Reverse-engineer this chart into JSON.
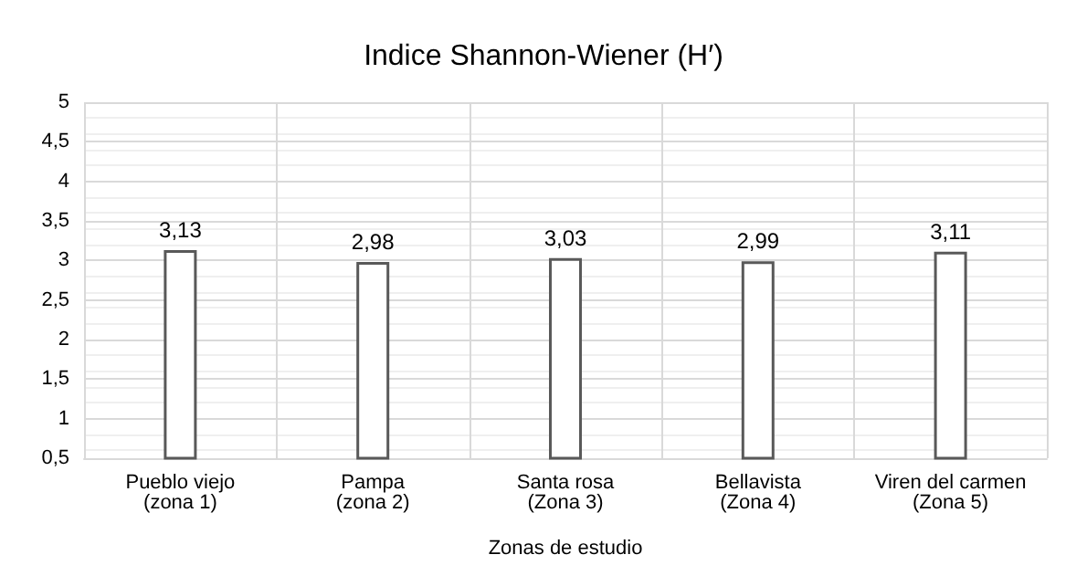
{
  "chart_data": {
    "type": "bar",
    "title": "Indice Shannon-Wiener (H′)",
    "xlabel": "Zonas de estudio",
    "categories": [
      "Pueblo viejo\n(zona 1)",
      "Pampa\n(zona 2)",
      "Santa rosa\n(Zona 3)",
      "Bellavista\n(Zona 4)",
      "Viren del carmen\n(Zona 5)"
    ],
    "values": [
      3.13,
      2.98,
      3.03,
      2.99,
      3.11
    ],
    "value_labels": [
      "3,13",
      "2,98",
      "3,03",
      "2,99",
      "3,11"
    ],
    "color": "#595959",
    "ylim": [
      0.5,
      5
    ],
    "yticks": [
      {
        "value": 0.5,
        "label": "0,5"
      },
      1,
      {
        "value": 1.5,
        "label": "1,5"
      },
      2,
      {
        "value": 2.5,
        "label": "2,5"
      },
      3,
      {
        "value": 3.5,
        "label": "3,5"
      },
      4,
      {
        "value": 4.5,
        "label": "4,5"
      },
      5
    ],
    "grid": true
  }
}
